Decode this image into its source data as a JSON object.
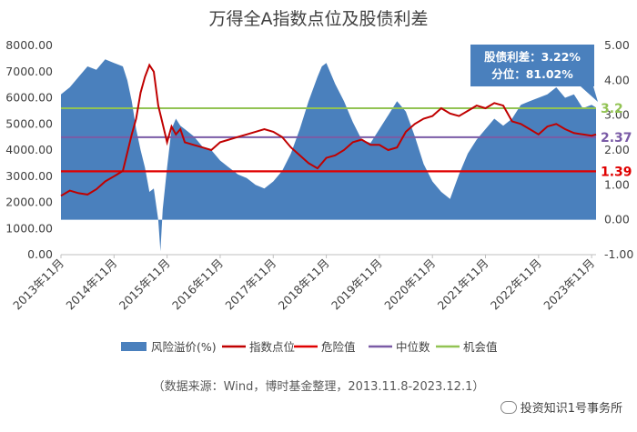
{
  "title": "万得全A指数点位及股债利差",
  "source_note": "（数据来源：Wind，博时基金整理，2013.11.8-2023.12.1）",
  "watermark": "投资知识1号事务所",
  "callout": {
    "line1": "股债利差：3.22%",
    "line2": "分位：81.02%"
  },
  "colors": {
    "area": "#4a80bd",
    "index_line": "#c00000",
    "danger": "#e00000",
    "median": "#7a5ba6",
    "opportunity": "#92c353"
  },
  "chart_data": {
    "type": "line",
    "left_axis": {
      "ticks": [
        "8000.00",
        "7000.00",
        "6000.00",
        "5000.00",
        "4000.00",
        "3000.00",
        "2000.00",
        "1000.00",
        "0.00"
      ],
      "ylim": [
        0,
        8000
      ]
    },
    "right_axis": {
      "ticks": [
        "5.00",
        "4.00",
        "3.00",
        "2.00",
        "1.00",
        "0.00",
        "-1.00"
      ],
      "ylim": [
        -1,
        5
      ]
    },
    "x_ticks": [
      "2013年11月",
      "2014年11月",
      "2015年11月",
      "2016年11月",
      "2017年11月",
      "2018年11月",
      "2019年11月",
      "2020年11月",
      "2021年11月",
      "2022年11月",
      "2023年11月"
    ],
    "x_range": [
      "2013-11",
      "2023-12"
    ],
    "reference_lines": [
      {
        "name": "危险值",
        "value": 1.39,
        "label": "1.39"
      },
      {
        "name": "中位数",
        "value": 2.37,
        "label": "2.37"
      },
      {
        "name": "机会值",
        "value": 3.2,
        "label": "3.2"
      }
    ],
    "series": [
      {
        "name": "风险溢价(%)",
        "axis": "right",
        "kind": "area",
        "points": [
          [
            0,
            3.6
          ],
          [
            2,
            3.8
          ],
          [
            4,
            4.1
          ],
          [
            6,
            4.4
          ],
          [
            8,
            4.3
          ],
          [
            10,
            4.6
          ],
          [
            12,
            4.5
          ],
          [
            14,
            4.4
          ],
          [
            15,
            4.0
          ],
          [
            16,
            3.4
          ],
          [
            17,
            2.6
          ],
          [
            18,
            2.0
          ],
          [
            19,
            1.5
          ],
          [
            20,
            0.8
          ],
          [
            21,
            0.9
          ],
          [
            22,
            0.0
          ],
          [
            22.5,
            -0.9
          ],
          [
            23,
            0.3
          ],
          [
            24,
            1.5
          ],
          [
            25,
            2.6
          ],
          [
            26,
            2.9
          ],
          [
            27,
            2.7
          ],
          [
            28,
            2.6
          ],
          [
            30,
            2.4
          ],
          [
            32,
            2.1
          ],
          [
            34,
            2.0
          ],
          [
            36,
            1.7
          ],
          [
            38,
            1.5
          ],
          [
            40,
            1.3
          ],
          [
            42,
            1.2
          ],
          [
            44,
            1.0
          ],
          [
            46,
            0.9
          ],
          [
            48,
            1.1
          ],
          [
            50,
            1.4
          ],
          [
            52,
            1.9
          ],
          [
            54,
            2.6
          ],
          [
            56,
            3.4
          ],
          [
            58,
            4.1
          ],
          [
            59,
            4.4
          ],
          [
            60,
            4.5
          ],
          [
            62,
            3.9
          ],
          [
            64,
            3.4
          ],
          [
            66,
            2.8
          ],
          [
            68,
            2.3
          ],
          [
            70,
            2.2
          ],
          [
            72,
            2.6
          ],
          [
            74,
            3.0
          ],
          [
            76,
            3.4
          ],
          [
            78,
            3.1
          ],
          [
            80,
            2.4
          ],
          [
            82,
            1.6
          ],
          [
            84,
            1.1
          ],
          [
            86,
            0.8
          ],
          [
            88,
            0.6
          ],
          [
            90,
            1.3
          ],
          [
            92,
            1.9
          ],
          [
            94,
            2.3
          ],
          [
            96,
            2.6
          ],
          [
            98,
            2.9
          ],
          [
            100,
            2.7
          ],
          [
            102,
            2.9
          ],
          [
            104,
            3.3
          ],
          [
            106,
            3.4
          ],
          [
            108,
            3.5
          ],
          [
            110,
            3.6
          ],
          [
            112,
            3.8
          ],
          [
            114,
            3.5
          ],
          [
            116,
            3.6
          ],
          [
            118,
            3.2
          ],
          [
            120,
            3.3
          ],
          [
            121,
            3.22
          ]
        ]
      },
      {
        "name": "指数点位",
        "axis": "left",
        "kind": "line",
        "points": [
          [
            0,
            2250
          ],
          [
            2,
            2450
          ],
          [
            4,
            2350
          ],
          [
            6,
            2300
          ],
          [
            8,
            2500
          ],
          [
            10,
            2800
          ],
          [
            12,
            3000
          ],
          [
            14,
            3200
          ],
          [
            15,
            3900
          ],
          [
            16,
            4600
          ],
          [
            17,
            5200
          ],
          [
            18,
            6200
          ],
          [
            19,
            6800
          ],
          [
            20,
            7250
          ],
          [
            21,
            7000
          ],
          [
            22,
            5700
          ],
          [
            23,
            5000
          ],
          [
            24,
            4300
          ],
          [
            25,
            4900
          ],
          [
            26,
            4600
          ],
          [
            27,
            4800
          ],
          [
            28,
            4300
          ],
          [
            30,
            4200
          ],
          [
            32,
            4100
          ],
          [
            34,
            4000
          ],
          [
            36,
            4300
          ],
          [
            38,
            4400
          ],
          [
            40,
            4500
          ],
          [
            42,
            4600
          ],
          [
            44,
            4700
          ],
          [
            46,
            4800
          ],
          [
            48,
            4700
          ],
          [
            50,
            4500
          ],
          [
            52,
            4100
          ],
          [
            54,
            3800
          ],
          [
            56,
            3500
          ],
          [
            58,
            3300
          ],
          [
            60,
            3700
          ],
          [
            62,
            3800
          ],
          [
            64,
            4000
          ],
          [
            66,
            4300
          ],
          [
            68,
            4400
          ],
          [
            70,
            4200
          ],
          [
            72,
            4200
          ],
          [
            74,
            4000
          ],
          [
            76,
            4100
          ],
          [
            78,
            4700
          ],
          [
            80,
            5000
          ],
          [
            82,
            5200
          ],
          [
            84,
            5300
          ],
          [
            86,
            5600
          ],
          [
            88,
            5400
          ],
          [
            90,
            5300
          ],
          [
            92,
            5500
          ],
          [
            94,
            5700
          ],
          [
            96,
            5600
          ],
          [
            98,
            5800
          ],
          [
            100,
            5700
          ],
          [
            102,
            5100
          ],
          [
            104,
            5000
          ],
          [
            106,
            4800
          ],
          [
            108,
            4600
          ],
          [
            110,
            4900
          ],
          [
            112,
            5000
          ],
          [
            114,
            4800
          ],
          [
            116,
            4650
          ],
          [
            118,
            4600
          ],
          [
            120,
            4550
          ],
          [
            121,
            4600
          ]
        ]
      },
      {
        "name": "危险值",
        "axis": "right",
        "kind": "hline",
        "value": 1.39
      },
      {
        "name": "中位数",
        "axis": "right",
        "kind": "hline",
        "value": 2.37
      },
      {
        "name": "机会值",
        "axis": "right",
        "kind": "hline",
        "value": 3.2
      }
    ],
    "legend": [
      "风险溢价(%)",
      "指数点位",
      "危险值",
      "中位数",
      "机会值"
    ],
    "legend_position": "bottom"
  }
}
